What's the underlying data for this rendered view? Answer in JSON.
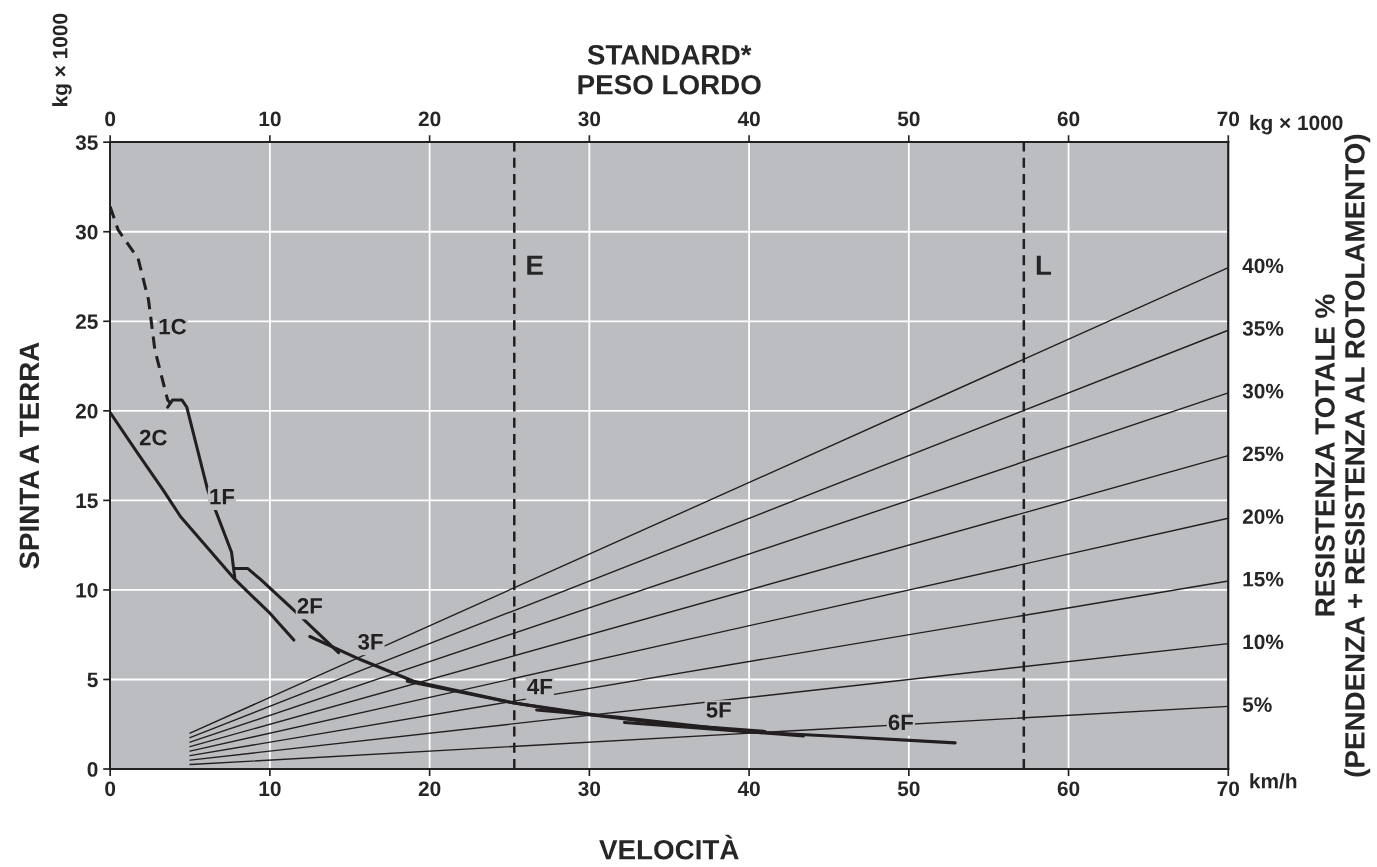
{
  "chart_data": {
    "type": "line",
    "x2label": "STANDARD*\nPESO LORDO",
    "xlabel": "VELOCITÀ",
    "ylabel": "SPINTA A TERRA",
    "y2label": "RESISTENZA TOTALE %\n(PENDENZA + RESISTENZA AL ROTOLAMENTO)",
    "xlim": [
      0,
      70
    ],
    "xticks": [
      0,
      10,
      20,
      30,
      40,
      50,
      60,
      70
    ],
    "x2lim": [
      0,
      70
    ],
    "x2ticks": [
      0,
      10,
      20,
      30,
      40,
      50,
      60,
      70
    ],
    "ylim": [
      0,
      35
    ],
    "yticks": [
      0,
      5,
      10,
      15,
      20,
      25,
      30,
      35
    ],
    "grid": true,
    "marker": "none",
    "series": [
      {
        "color": "#231f20",
        "line_style": "dashed",
        "x": [
          0,
          0.5,
          1.75,
          2.4,
          2.8,
          3.6,
          3.8
        ],
        "values": [
          31.4,
          30.1,
          28.5,
          26.2,
          23.4,
          20.6,
          20.4
        ]
      },
      {
        "color": "#231f20",
        "line_style": "solid",
        "x": [
          3.6,
          3.9,
          4.5,
          4.8,
          6.1,
          7.6,
          7.8
        ],
        "values": [
          20.2,
          20.6,
          20.6,
          20.2,
          15.6,
          12.1,
          10.7
        ]
      },
      {
        "color": "#231f20",
        "line_style": "solid",
        "x": [
          0,
          1.75,
          3.3,
          4.4,
          7.8,
          10,
          11.5
        ],
        "values": [
          19.9,
          17.6,
          15.6,
          14.1,
          10.6,
          8.7,
          7.2
        ]
      },
      {
        "color": "#231f20",
        "line_style": "solid",
        "x": [
          7.8,
          8.6,
          9.4,
          11.7,
          14.3
        ],
        "values": [
          11.2,
          11.2,
          10.6,
          8.7,
          6.5
        ]
      },
      {
        "color": "#231f20",
        "line_style": "solid",
        "x": [
          12.5,
          15.7,
          19.0,
          25.2,
          30.5
        ],
        "values": [
          7.4,
          6.1,
          4.9,
          3.7,
          3.0
        ]
      },
      {
        "color": "#231f20",
        "line_style": "solid",
        "x": [
          18.6,
          25.2,
          29.4,
          35.0,
          41.0
        ],
        "values": [
          4.9,
          3.7,
          3.1,
          2.5,
          2.1
        ]
      },
      {
        "color": "#231f20",
        "line_style": "solid",
        "x": [
          26.7,
          31.7,
          40.1,
          43.4
        ],
        "values": [
          3.3,
          2.9,
          2.07,
          1.84
        ]
      },
      {
        "color": "#231f20",
        "line_style": "solid",
        "x": [
          32.2,
          40.1,
          46.0,
          52.9
        ],
        "values": [
          2.6,
          2.07,
          1.8,
          1.46
        ]
      },
      {
        "color": "#231f20",
        "line_style": "solid",
        "x": [
          5,
          70
        ],
        "values": [
          0.25,
          3.5
        ],
        "name": "5%"
      },
      {
        "color": "#231f20",
        "line_style": "solid",
        "x": [
          5,
          70
        ],
        "values": [
          0.5,
          7
        ],
        "name": "10%"
      },
      {
        "color": "#231f20",
        "line_style": "solid",
        "x": [
          5,
          70
        ],
        "values": [
          0.75,
          10.5
        ],
        "name": "15%"
      },
      {
        "color": "#231f20",
        "line_style": "solid",
        "x": [
          5,
          70
        ],
        "values": [
          1,
          14
        ],
        "name": "20%"
      },
      {
        "color": "#231f20",
        "line_style": "solid",
        "x": [
          5,
          70
        ],
        "values": [
          1.25,
          17.5
        ],
        "name": "25%"
      },
      {
        "color": "#231f20",
        "line_style": "solid",
        "x": [
          5,
          70
        ],
        "values": [
          1.5,
          21
        ],
        "name": "30%"
      },
      {
        "color": "#231f20",
        "line_style": "solid",
        "x": [
          5,
          70
        ],
        "values": [
          1.75,
          24.5
        ],
        "name": "35%"
      },
      {
        "color": "#231f20",
        "line_style": "solid",
        "x": [
          5,
          70
        ],
        "values": [
          2,
          28
        ],
        "name": "40%"
      }
    ],
    "ref_lines": [
      {
        "axis": "x",
        "value": 25.3,
        "label": "E",
        "line_style": "dashed",
        "color": "#231f20"
      },
      {
        "axis": "x",
        "value": 57.2,
        "label": "L",
        "line_style": "dashed",
        "color": "#231f20"
      }
    ],
    "annotations": [
      "kg × 1000",
      "kg × 1000",
      "km/h",
      {
        "text": "1C",
        "x": 3.9,
        "y": 24.6
      },
      {
        "text": "2C",
        "x": 2.7,
        "y": 18.4
      },
      {
        "text": "1F",
        "x": 7.0,
        "y": 15.1
      },
      {
        "text": "2F",
        "x": 12.5,
        "y": 9.0
      },
      {
        "text": "3F",
        "x": 16.3,
        "y": 7.0
      },
      {
        "text": "4F",
        "x": 26.9,
        "y": 4.5
      },
      {
        "text": "5F",
        "x": 38.1,
        "y": 3.2
      },
      {
        "text": "6F",
        "x": 49.5,
        "y": 2.5
      }
    ]
  }
}
